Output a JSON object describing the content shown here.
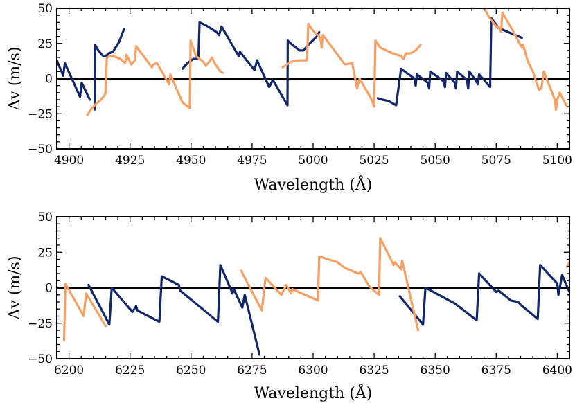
{
  "colors": {
    "navy": "#10276e",
    "orange": "#f8a063",
    "axis": "#000000"
  },
  "chart_data": [
    {
      "type": "line",
      "title": "",
      "xlabel": "Wavelength (Å)",
      "ylabel": "Δv (m/s)",
      "xlim": [
        4895,
        5105
      ],
      "ylim": [
        -50,
        50
      ],
      "xticks": [
        4900,
        4925,
        4950,
        4975,
        5000,
        5025,
        5050,
        5075,
        5100
      ],
      "xtick_labels": [
        "4900",
        "4925",
        "4950",
        "4975",
        "5000",
        "5025",
        "5050",
        "5075",
        "5100"
      ],
      "yticks": [
        -50,
        -25,
        0,
        25,
        50
      ],
      "ytick_labels": [
        "−50",
        "−25",
        "0",
        "25",
        "50"
      ],
      "zero_line": true,
      "series": [
        {
          "name": "navy-1",
          "color": "navy",
          "points": [
            [
              4895,
              13
            ],
            [
              4897.6,
              2
            ],
            [
              4898.3,
              11
            ],
            [
              4904.5,
              -13
            ],
            [
              4905.2,
              -3
            ],
            [
              4908.5,
              -15
            ]
          ]
        },
        {
          "name": "navy-2",
          "color": "navy",
          "points": [
            [
              4910.5,
              -22
            ],
            [
              4910.7,
              24
            ],
            [
              4912,
              20
            ],
            [
              4914,
              16
            ],
            [
              4915.5,
              16.5
            ],
            [
              4916.3,
              18
            ],
            [
              4918,
              19
            ],
            [
              4920.5,
              26
            ],
            [
              4922.5,
              35
            ]
          ]
        },
        {
          "name": "navy-3",
          "color": "navy",
          "points": [
            [
              4946.5,
              7
            ],
            [
              4948.5,
              11
            ],
            [
              4951,
              14
            ],
            [
              4952.5,
              14
            ],
            [
              4953,
              15
            ],
            [
              4953.5,
              40
            ],
            [
              4956,
              38
            ],
            [
              4960.5,
              33
            ],
            [
              4961.5,
              31
            ],
            [
              4962.5,
              37
            ],
            [
              4969.5,
              16
            ],
            [
              4970,
              19
            ],
            [
              4976,
              6
            ],
            [
              4977,
              13
            ],
            [
              4982,
              -6
            ],
            [
              4983.5,
              -1
            ],
            [
              4989.5,
              -19
            ],
            [
              4989.6,
              27
            ],
            [
              4991.5,
              24
            ],
            [
              4993,
              22
            ],
            [
              4994.5,
              20
            ],
            [
              4996,
              20
            ],
            [
              4998,
              24
            ],
            [
              5001.5,
              30
            ],
            [
              5002.5,
              33
            ]
          ]
        },
        {
          "name": "navy-4",
          "color": "navy",
          "points": [
            [
              5026.5,
              -14
            ],
            [
              5028.5,
              -15
            ],
            [
              5031,
              -16
            ],
            [
              5033,
              -18
            ],
            [
              5034,
              -19
            ],
            [
              5036,
              7
            ],
            [
              5041.5,
              0
            ],
            [
              5042,
              -5
            ],
            [
              5042.5,
              3
            ],
            [
              5047,
              -3
            ],
            [
              5047.5,
              -7
            ],
            [
              5048,
              5
            ],
            [
              5053.5,
              -2
            ],
            [
              5054,
              -6
            ],
            [
              5054.5,
              4
            ],
            [
              5058,
              -3
            ],
            [
              5058.5,
              -7
            ],
            [
              5059,
              5
            ],
            [
              5063,
              -1
            ],
            [
              5063.5,
              -7
            ],
            [
              5064,
              5
            ],
            [
              5066.5,
              -1
            ],
            [
              5067.5,
              -4
            ],
            [
              5068,
              3
            ],
            [
              5072,
              -5
            ],
            [
              5072.5,
              -6
            ],
            [
              5073,
              43
            ],
            [
              5076,
              36
            ],
            [
              5080,
              33
            ],
            [
              5085.5,
              29
            ]
          ]
        },
        {
          "name": "orange-1",
          "color": "orange",
          "points": [
            [
              4907.5,
              -26
            ],
            [
              4909,
              -22
            ],
            [
              4911,
              -18
            ],
            [
              4912.5,
              -16
            ],
            [
              4913.5,
              -14
            ],
            [
              4914.5,
              -12
            ],
            [
              4915,
              -10
            ],
            [
              4915.5,
              15
            ],
            [
              4917,
              16
            ],
            [
              4919,
              15.5
            ],
            [
              4921,
              14
            ],
            [
              4923,
              11
            ],
            [
              4923.5,
              17
            ],
            [
              4925.5,
              10
            ],
            [
              4927,
              13
            ],
            [
              4927.5,
              23
            ],
            [
              4934,
              8
            ],
            [
              4934.5,
              10
            ],
            [
              4936,
              11
            ],
            [
              4941,
              -4
            ],
            [
              4941.5,
              3
            ],
            [
              4946,
              -15
            ],
            [
              4946.5,
              -17
            ],
            [
              4948,
              -19
            ],
            [
              4949.5,
              -21
            ],
            [
              4949.8,
              27
            ],
            [
              4952,
              16
            ],
            [
              4955,
              12
            ],
            [
              4956,
              9
            ],
            [
              4957.5,
              12
            ],
            [
              4958.5,
              15
            ],
            [
              4960,
              10
            ],
            [
              4962,
              5
            ],
            [
              4963,
              4
            ]
          ]
        },
        {
          "name": "orange-2",
          "color": "orange",
          "points": [
            [
              4987.5,
              8
            ],
            [
              4991,
              12
            ],
            [
              4994,
              13
            ],
            [
              4997.5,
              13
            ],
            [
              4998,
              39
            ],
            [
              5000,
              34
            ],
            [
              5003,
              29
            ],
            [
              5003.5,
              22
            ],
            [
              5004,
              31
            ],
            [
              5013,
              10
            ],
            [
              5016,
              11
            ],
            [
              5018,
              -7
            ],
            [
              5019,
              0
            ],
            [
              5024,
              -15
            ],
            [
              5025,
              -20
            ],
            [
              5025.5,
              27
            ],
            [
              5027.5,
              22
            ],
            [
              5032.5,
              18
            ],
            [
              5036,
              16
            ],
            [
              5037,
              14
            ],
            [
              5038,
              18
            ],
            [
              5040,
              18
            ],
            [
              5042,
              20
            ],
            [
              5044,
              24
            ]
          ]
        },
        {
          "name": "orange-3",
          "color": "orange",
          "points": [
            [
              5070,
              50
            ],
            [
              5072,
              44
            ],
            [
              5075,
              37
            ],
            [
              5076,
              37
            ],
            [
              5077,
              33
            ],
            [
              5077.5,
              47
            ],
            [
              5081.5,
              35
            ],
            [
              5085.5,
              22
            ],
            [
              5086,
              24
            ],
            [
              5088,
              12
            ],
            [
              5090,
              5
            ],
            [
              5092.5,
              -8
            ],
            [
              5093.5,
              -7
            ],
            [
              5094.5,
              5
            ],
            [
              5099,
              -15
            ],
            [
              5099.5,
              -22
            ],
            [
              5100,
              -15
            ],
            [
              5101,
              -10
            ],
            [
              5104,
              -20
            ]
          ]
        }
      ]
    },
    {
      "type": "line",
      "title": "",
      "xlabel": "Wavelength (Å)",
      "ylabel": "Δv (m/s)",
      "xlim": [
        6195,
        6405
      ],
      "ylim": [
        -50,
        50
      ],
      "xticks": [
        6200,
        6225,
        6250,
        6275,
        6300,
        6325,
        6350,
        6375,
        6400
      ],
      "xtick_labels": [
        "6200",
        "6225",
        "6250",
        "6275",
        "6300",
        "6325",
        "6350",
        "6375",
        "6400"
      ],
      "yticks": [
        -50,
        -25,
        0,
        25,
        50
      ],
      "ytick_labels": [
        "−50",
        "−25",
        "0",
        "25",
        "50"
      ],
      "zero_line": true,
      "series": [
        {
          "name": "navy-1",
          "color": "navy",
          "points": [
            [
              6208,
              2
            ],
            [
              6215,
              -21
            ],
            [
              6216.5,
              -26
            ],
            [
              6217.5,
              0
            ],
            [
              6226,
              -17
            ],
            [
              6227.5,
              -13
            ],
            [
              6228,
              -16
            ],
            [
              6237,
              -24
            ],
            [
              6238,
              8
            ],
            [
              6245,
              2
            ],
            [
              6245.5,
              -2
            ],
            [
              6254,
              -14
            ],
            [
              6261,
              -24
            ],
            [
              6262,
              16
            ],
            [
              6267,
              -4
            ],
            [
              6267.5,
              -1
            ],
            [
              6271,
              -14
            ],
            [
              6272,
              -5
            ],
            [
              6278,
              -47
            ]
          ]
        },
        {
          "name": "navy-2",
          "color": "navy",
          "points": [
            [
              6335.5,
              -6
            ],
            [
              6345,
              -26
            ],
            [
              6346,
              0
            ],
            [
              6358,
              -11
            ],
            [
              6367,
              -23
            ],
            [
              6368,
              10
            ],
            [
              6375,
              -3
            ],
            [
              6376,
              -2
            ],
            [
              6381,
              -9
            ],
            [
              6384,
              -10
            ],
            [
              6385,
              -12
            ],
            [
              6392,
              -22
            ],
            [
              6393,
              16
            ],
            [
              6400,
              3
            ],
            [
              6400.5,
              -5
            ],
            [
              6402,
              9
            ],
            [
              6405,
              -3
            ]
          ]
        },
        {
          "name": "orange-1",
          "color": "orange",
          "points": [
            [
              6198,
              -37
            ],
            [
              6198.5,
              3
            ],
            [
              6206,
              -20
            ],
            [
              6207,
              -4
            ],
            [
              6215,
              -27
            ]
          ]
        },
        {
          "name": "orange-2",
          "color": "orange",
          "points": [
            [
              6270.5,
              12
            ],
            [
              6279,
              -16
            ],
            [
              6280.5,
              7
            ],
            [
              6287,
              -5
            ],
            [
              6289,
              2
            ],
            [
              6291,
              -4
            ],
            [
              6291.5,
              -1
            ],
            [
              6302,
              -9
            ],
            [
              6302.5,
              22
            ],
            [
              6310,
              18
            ],
            [
              6313,
              14
            ],
            [
              6318.5,
              10
            ],
            [
              6319.5,
              11
            ],
            [
              6323,
              1
            ],
            [
              6327,
              -5
            ],
            [
              6327.5,
              35
            ],
            [
              6333,
              16
            ],
            [
              6333.5,
              18
            ],
            [
              6336,
              13
            ],
            [
              6336.5,
              19
            ],
            [
              6343,
              -30
            ]
          ]
        },
        {
          "name": "orange-3",
          "color": "orange",
          "points": [
            [
              6404,
              15
            ],
            [
              6405,
              18
            ]
          ]
        }
      ]
    }
  ]
}
